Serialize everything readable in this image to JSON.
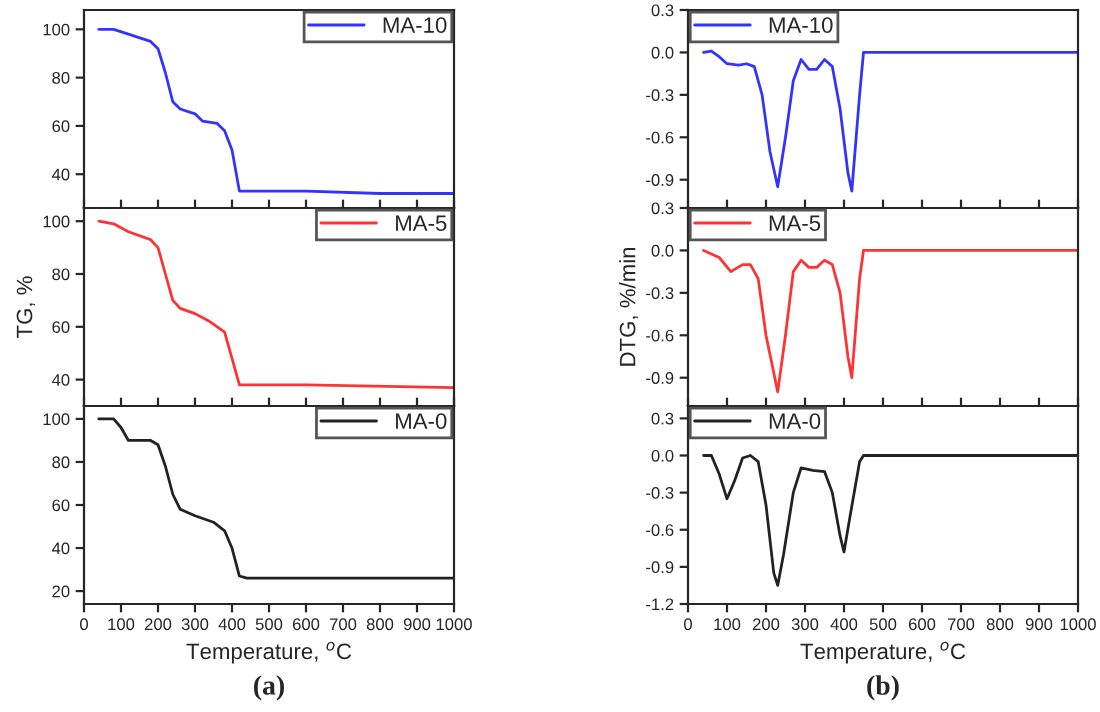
{
  "chart_data": [
    {
      "type": "line",
      "legend": "top right",
      "tick_labels": "y",
      "xlim": [
        0,
        1000
      ],
      "xticks": [
        0,
        100,
        200,
        300,
        400,
        500,
        600,
        700,
        800,
        900,
        1000
      ],
      "ylim": [
        26,
        108
      ],
      "yticks": [
        40,
        60,
        80,
        100
      ],
      "series": [
        {
          "name": "MA-10",
          "color": "#3333ff",
          "x": [
            40,
            80,
            120,
            180,
            200,
            220,
            240,
            260,
            300,
            320,
            360,
            380,
            400,
            420,
            450,
            600,
            800,
            1000
          ],
          "values": [
            100,
            100,
            98,
            95,
            92,
            82,
            70,
            67,
            65,
            62,
            61,
            58,
            50,
            33,
            33,
            33,
            32,
            32
          ]
        }
      ]
    },
    {
      "type": "line",
      "legend": "top left",
      "tick_labels": "y",
      "xlim": [
        0,
        1000
      ],
      "xticks": [
        0,
        100,
        200,
        300,
        400,
        500,
        600,
        700,
        800,
        900,
        1000
      ],
      "ylim": [
        -1.1,
        0.3
      ],
      "yticks": [
        0.3,
        {
          "value": 0,
          "label": "0.0"
        },
        {
          "value": -0.3,
          "label": "-0.3"
        },
        {
          "value": -0.6,
          "label": "-0.6"
        },
        {
          "value": -0.9,
          "label": "-0.9"
        }
      ],
      "series": [
        {
          "name": "MA-10",
          "color": "#3333ff",
          "x": [
            40,
            60,
            80,
            100,
            130,
            150,
            170,
            190,
            210,
            230,
            250,
            270,
            290,
            310,
            330,
            350,
            370,
            390,
            410,
            420,
            440,
            450,
            1000
          ],
          "values": [
            0,
            0.01,
            -0.03,
            -0.08,
            -0.09,
            -0.08,
            -0.1,
            -0.3,
            -0.7,
            -0.95,
            -0.6,
            -0.2,
            -0.05,
            -0.12,
            -0.12,
            -0.05,
            -0.1,
            -0.4,
            -0.85,
            -0.98,
            -0.3,
            0,
            0
          ]
        }
      ]
    },
    {
      "type": "line",
      "legend": "top right",
      "tick_labels": "y",
      "ylabel": "TG, %",
      "xlim": [
        0,
        1000
      ],
      "xticks": [
        0,
        100,
        200,
        300,
        400,
        500,
        600,
        700,
        800,
        900,
        1000
      ],
      "ylim": [
        30,
        105
      ],
      "yticks": [
        40,
        60,
        80,
        100
      ],
      "series": [
        {
          "name": "MA-5",
          "color": "#ff3333",
          "x": [
            40,
            80,
            120,
            180,
            200,
            220,
            240,
            260,
            300,
            340,
            380,
            400,
            420,
            440,
            600,
            1000
          ],
          "values": [
            100,
            99,
            96,
            93,
            90,
            80,
            70,
            67,
            65,
            62,
            58,
            48,
            38,
            38,
            38,
            37
          ]
        }
      ]
    },
    {
      "type": "line",
      "legend": "top left",
      "tick_labels": "y",
      "ylabel": "DTG, %/min",
      "xlim": [
        0,
        1000
      ],
      "xticks": [
        0,
        100,
        200,
        300,
        400,
        500,
        600,
        700,
        800,
        900,
        1000
      ],
      "ylim": [
        -1.1,
        0.3
      ],
      "yticks": [
        0.3,
        {
          "value": 0,
          "label": "0.0"
        },
        {
          "value": -0.3,
          "label": "-0.3"
        },
        {
          "value": -0.6,
          "label": "-0.6"
        },
        {
          "value": -0.9,
          "label": "-0.9"
        }
      ],
      "series": [
        {
          "name": "MA-5",
          "color": "#ff3333",
          "x": [
            40,
            80,
            110,
            140,
            160,
            180,
            200,
            230,
            250,
            270,
            290,
            310,
            330,
            350,
            370,
            390,
            410,
            420,
            440,
            450,
            1000
          ],
          "values": [
            0,
            -0.05,
            -0.15,
            -0.1,
            -0.1,
            -0.2,
            -0.6,
            -1.0,
            -0.6,
            -0.15,
            -0.07,
            -0.12,
            -0.12,
            -0.07,
            -0.1,
            -0.3,
            -0.75,
            -0.9,
            -0.2,
            0,
            0
          ]
        }
      ]
    },
    {
      "type": "line",
      "legend": "top right",
      "xlabel": "Temperature, $^{o}$C",
      "annotations": [
        "(a)"
      ],
      "xlim": [
        0,
        1000
      ],
      "xticks": [
        0,
        100,
        200,
        300,
        400,
        500,
        600,
        700,
        800,
        900,
        1000
      ],
      "ylim": [
        14,
        106
      ],
      "yticks": [
        20,
        40,
        60,
        80,
        100
      ],
      "series": [
        {
          "name": "MA-0",
          "color": "#222222",
          "x": [
            40,
            80,
            100,
            120,
            180,
            200,
            220,
            240,
            260,
            300,
            350,
            380,
            400,
            420,
            440,
            1000
          ],
          "values": [
            100,
            100,
            96,
            90,
            90,
            88,
            78,
            65,
            58,
            55,
            52,
            48,
            40,
            27,
            26,
            26
          ]
        }
      ]
    },
    {
      "type": "line",
      "legend": "top left",
      "xlabel": "Temperature, $^{o}$C",
      "annotations": [
        "(b)"
      ],
      "xlim": [
        0,
        1000
      ],
      "xticks": [
        0,
        100,
        200,
        300,
        400,
        500,
        600,
        700,
        800,
        900,
        1000
      ],
      "ylim": [
        -1.2,
        0.4
      ],
      "yticks": [
        0.3,
        {
          "value": 0,
          "label": "0.0"
        },
        {
          "value": -0.3,
          "label": "-0.3"
        },
        {
          "value": -0.6,
          "label": "-0.6"
        },
        {
          "value": -0.9,
          "label": "-0.9"
        },
        {
          "value": -1.2,
          "label": "-1.2"
        }
      ],
      "series": [
        {
          "name": "MA-0",
          "color": "#222222",
          "x": [
            40,
            60,
            80,
            100,
            120,
            140,
            160,
            180,
            200,
            220,
            230,
            245,
            270,
            290,
            320,
            350,
            370,
            390,
            400,
            415,
            440,
            450,
            1000
          ],
          "values": [
            0,
            0,
            -0.15,
            -0.35,
            -0.2,
            -0.02,
            0,
            -0.05,
            -0.4,
            -0.95,
            -1.05,
            -0.8,
            -0.3,
            -0.1,
            -0.12,
            -0.13,
            -0.3,
            -0.65,
            -0.78,
            -0.5,
            -0.05,
            0,
            0
          ]
        }
      ]
    }
  ]
}
